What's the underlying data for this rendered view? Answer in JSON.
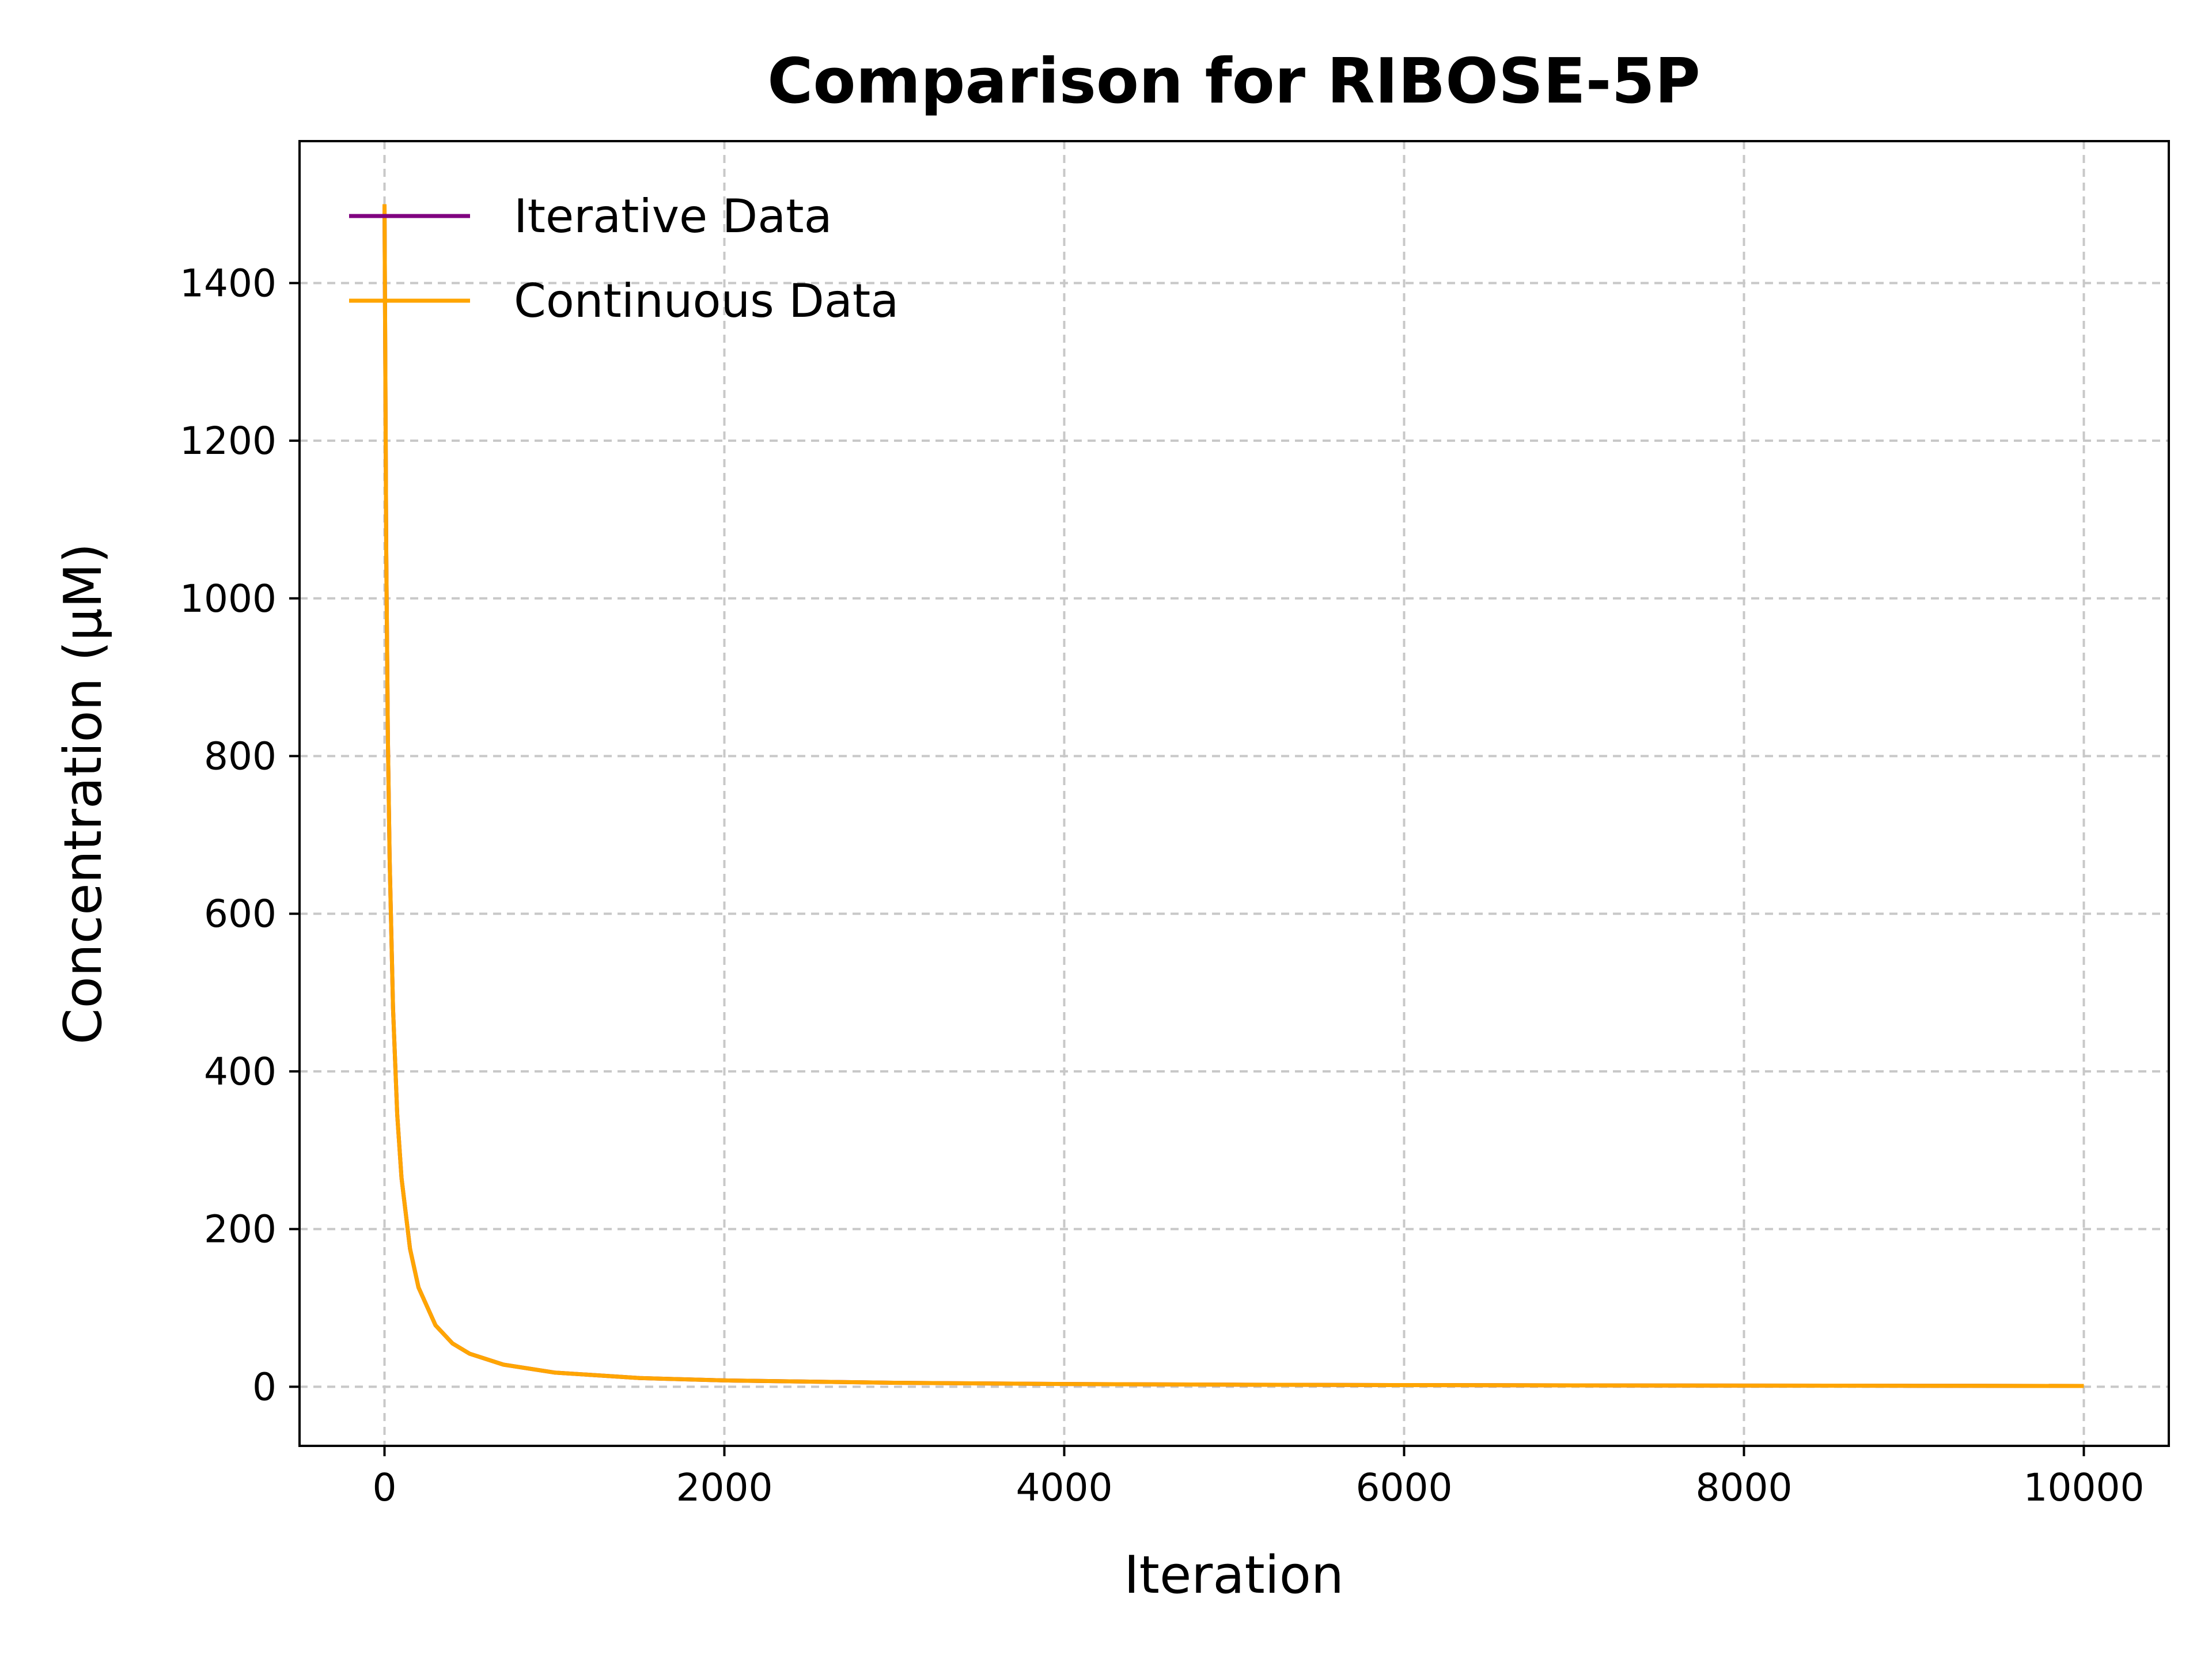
{
  "chart_data": {
    "type": "line",
    "title": "Comparison for RIBOSE-5P",
    "xlabel": "Iteration",
    "ylabel": "Concentration (μM)",
    "xlim": [
      -500,
      10500
    ],
    "ylim": [
      -75,
      1580
    ],
    "xticks": [
      0,
      2000,
      4000,
      6000,
      8000,
      10000
    ],
    "yticks": [
      0,
      200,
      400,
      600,
      800,
      1000,
      1200,
      1400
    ],
    "grid": true,
    "legend_position": "top-left",
    "series": [
      {
        "name": "Iterative Data",
        "color": "#800080",
        "x": [
          0,
          10,
          20,
          30,
          50,
          75,
          100,
          150,
          200,
          300,
          400,
          500,
          700,
          1000,
          1500,
          2000,
          3000,
          4000,
          5000,
          6000,
          7000,
          8000,
          9000,
          10000
        ],
        "y": [
          1500,
          1060,
          820,
          670,
          480,
          345,
          265,
          175,
          126,
          78,
          55,
          42,
          28,
          18,
          11,
          8,
          5,
          3.5,
          2.6,
          2.1,
          1.7,
          1.4,
          1.2,
          1.0
        ]
      },
      {
        "name": "Continuous Data",
        "color": "#ffa500",
        "x": [
          0,
          10,
          20,
          30,
          50,
          75,
          100,
          150,
          200,
          300,
          400,
          500,
          700,
          1000,
          1500,
          2000,
          3000,
          4000,
          5000,
          6000,
          7000,
          8000,
          9000,
          10000
        ],
        "y": [
          1500,
          1060,
          820,
          670,
          480,
          345,
          265,
          175,
          126,
          78,
          55,
          42,
          28,
          18,
          11,
          8,
          5,
          3.5,
          2.6,
          2.1,
          1.7,
          1.4,
          1.2,
          1.0
        ]
      }
    ]
  }
}
